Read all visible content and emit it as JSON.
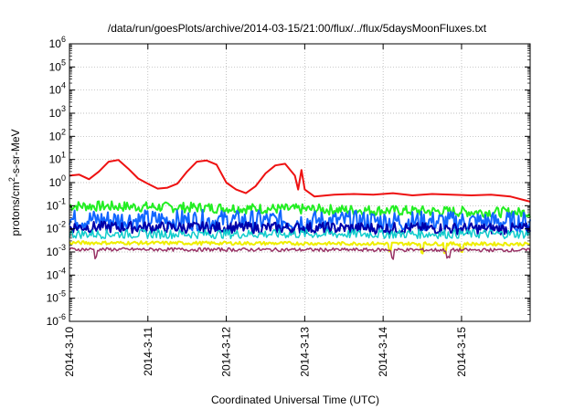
{
  "chart_data": {
    "type": "line",
    "title": "/data/run/goesPlots/archive/2014-03-15/21:00/flux/../flux/5daysMoonFluxes.txt",
    "xlabel": "Coordinated Universal Time (UTC)",
    "ylabel_parts": {
      "pre": "protons/cm",
      "sup": "2",
      "post": "-s-sr-MeV"
    },
    "yscale": "log",
    "ylim": [
      1e-06,
      1000000.0
    ],
    "xlim": [
      "2014-03-10T00:00",
      "2014-03-15T21:00"
    ],
    "grid": true,
    "y_ticks": [
      {
        "value": 1e-06,
        "exp": "-6"
      },
      {
        "value": 1e-05,
        "exp": "-5"
      },
      {
        "value": 0.0001,
        "exp": "-4"
      },
      {
        "value": 0.001,
        "exp": "-3"
      },
      {
        "value": 0.01,
        "exp": "-2"
      },
      {
        "value": 0.1,
        "exp": "-1"
      },
      {
        "value": 1.0,
        "exp": "0"
      },
      {
        "value": 10.0,
        "exp": "1"
      },
      {
        "value": 100.0,
        "exp": "2"
      },
      {
        "value": 1000.0,
        "exp": "3"
      },
      {
        "value": 10000.0,
        "exp": "4"
      },
      {
        "value": 100000.0,
        "exp": "5"
      },
      {
        "value": 1000000.0,
        "exp": "6"
      }
    ],
    "x_ticks": [
      {
        "date": "2014-03-10T00:00",
        "label": "2014-3-10"
      },
      {
        "date": "2014-03-11T00:00",
        "label": "2014-3-11"
      },
      {
        "date": "2014-03-12T00:00",
        "label": "2014-3-12"
      },
      {
        "date": "2014-03-13T00:00",
        "label": "2014-3-13"
      },
      {
        "date": "2014-03-14T00:00",
        "label": "2014-3-14"
      },
      {
        "date": "2014-03-15T00:00",
        "label": "2014-3-15"
      }
    ],
    "series": [
      {
        "color": "#ee1111",
        "width": 2,
        "points": [
          [
            "2014-03-10T00:00",
            2.0
          ],
          [
            "2014-03-10T03:00",
            2.2
          ],
          [
            "2014-03-10T06:00",
            1.4
          ],
          [
            "2014-03-10T09:00",
            3.0
          ],
          [
            "2014-03-10T12:00",
            8.0
          ],
          [
            "2014-03-10T15:00",
            9.5
          ],
          [
            "2014-03-10T18:00",
            4.0
          ],
          [
            "2014-03-10T21:00",
            1.5
          ],
          [
            "2014-03-11T00:00",
            0.9
          ],
          [
            "2014-03-11T03:00",
            0.55
          ],
          [
            "2014-03-11T06:00",
            0.6
          ],
          [
            "2014-03-11T09:00",
            0.9
          ],
          [
            "2014-03-11T12:00",
            3.0
          ],
          [
            "2014-03-11T15:00",
            8.0
          ],
          [
            "2014-03-11T18:00",
            9.0
          ],
          [
            "2014-03-11T21:00",
            6.0
          ],
          [
            "2014-03-12T00:00",
            1.0
          ],
          [
            "2014-03-12T03:00",
            0.5
          ],
          [
            "2014-03-12T06:00",
            0.35
          ],
          [
            "2014-03-12T09:00",
            0.7
          ],
          [
            "2014-03-12T12:00",
            2.5
          ],
          [
            "2014-03-12T15:00",
            5.5
          ],
          [
            "2014-03-12T18:00",
            6.5
          ],
          [
            "2014-03-12T21:00",
            2.0
          ],
          [
            "2014-03-12T22:00",
            0.5
          ],
          [
            "2014-03-12T23:00",
            3.5
          ],
          [
            "2014-03-13T00:00",
            0.5
          ],
          [
            "2014-03-13T03:00",
            0.25
          ],
          [
            "2014-03-13T09:00",
            0.3
          ],
          [
            "2014-03-13T15:00",
            0.32
          ],
          [
            "2014-03-13T21:00",
            0.3
          ],
          [
            "2014-03-14T03:00",
            0.35
          ],
          [
            "2014-03-14T09:00",
            0.28
          ],
          [
            "2014-03-14T15:00",
            0.32
          ],
          [
            "2014-03-14T21:00",
            0.3
          ],
          [
            "2014-03-15T03:00",
            0.28
          ],
          [
            "2014-03-15T09:00",
            0.3
          ],
          [
            "2014-03-15T15:00",
            0.25
          ],
          [
            "2014-03-15T21:00",
            0.15
          ]
        ]
      },
      {
        "color": "#22ee22",
        "width": 2,
        "start": 0.1,
        "end": 0.05,
        "spread": 0.45,
        "dips": []
      },
      {
        "color": "#1166ff",
        "width": 2,
        "start": 0.025,
        "end": 0.02,
        "spread": 0.9,
        "dips": []
      },
      {
        "color": "#0000aa",
        "width": 2,
        "start": 0.012,
        "end": 0.01,
        "spread": 0.5,
        "dips": []
      },
      {
        "color": "#11cccc",
        "width": 1.5,
        "start": 0.006,
        "end": 0.006,
        "spread": 0.4,
        "dips": []
      },
      {
        "color": "#eeee00",
        "width": 2,
        "start": 0.0025,
        "end": 0.0022,
        "spread": 0.15,
        "dips": [
          "2014-03-14T02:00",
          "2014-03-14T12:00",
          "2014-03-14T19:00",
          "2014-03-15T00:00"
        ]
      },
      {
        "color": "#993366",
        "width": 1.5,
        "start": 0.0013,
        "end": 0.0012,
        "spread": 0.15,
        "dips": [
          "2014-03-10T08:00",
          "2014-03-14T03:00",
          "2014-03-14T20:00"
        ]
      }
    ]
  }
}
